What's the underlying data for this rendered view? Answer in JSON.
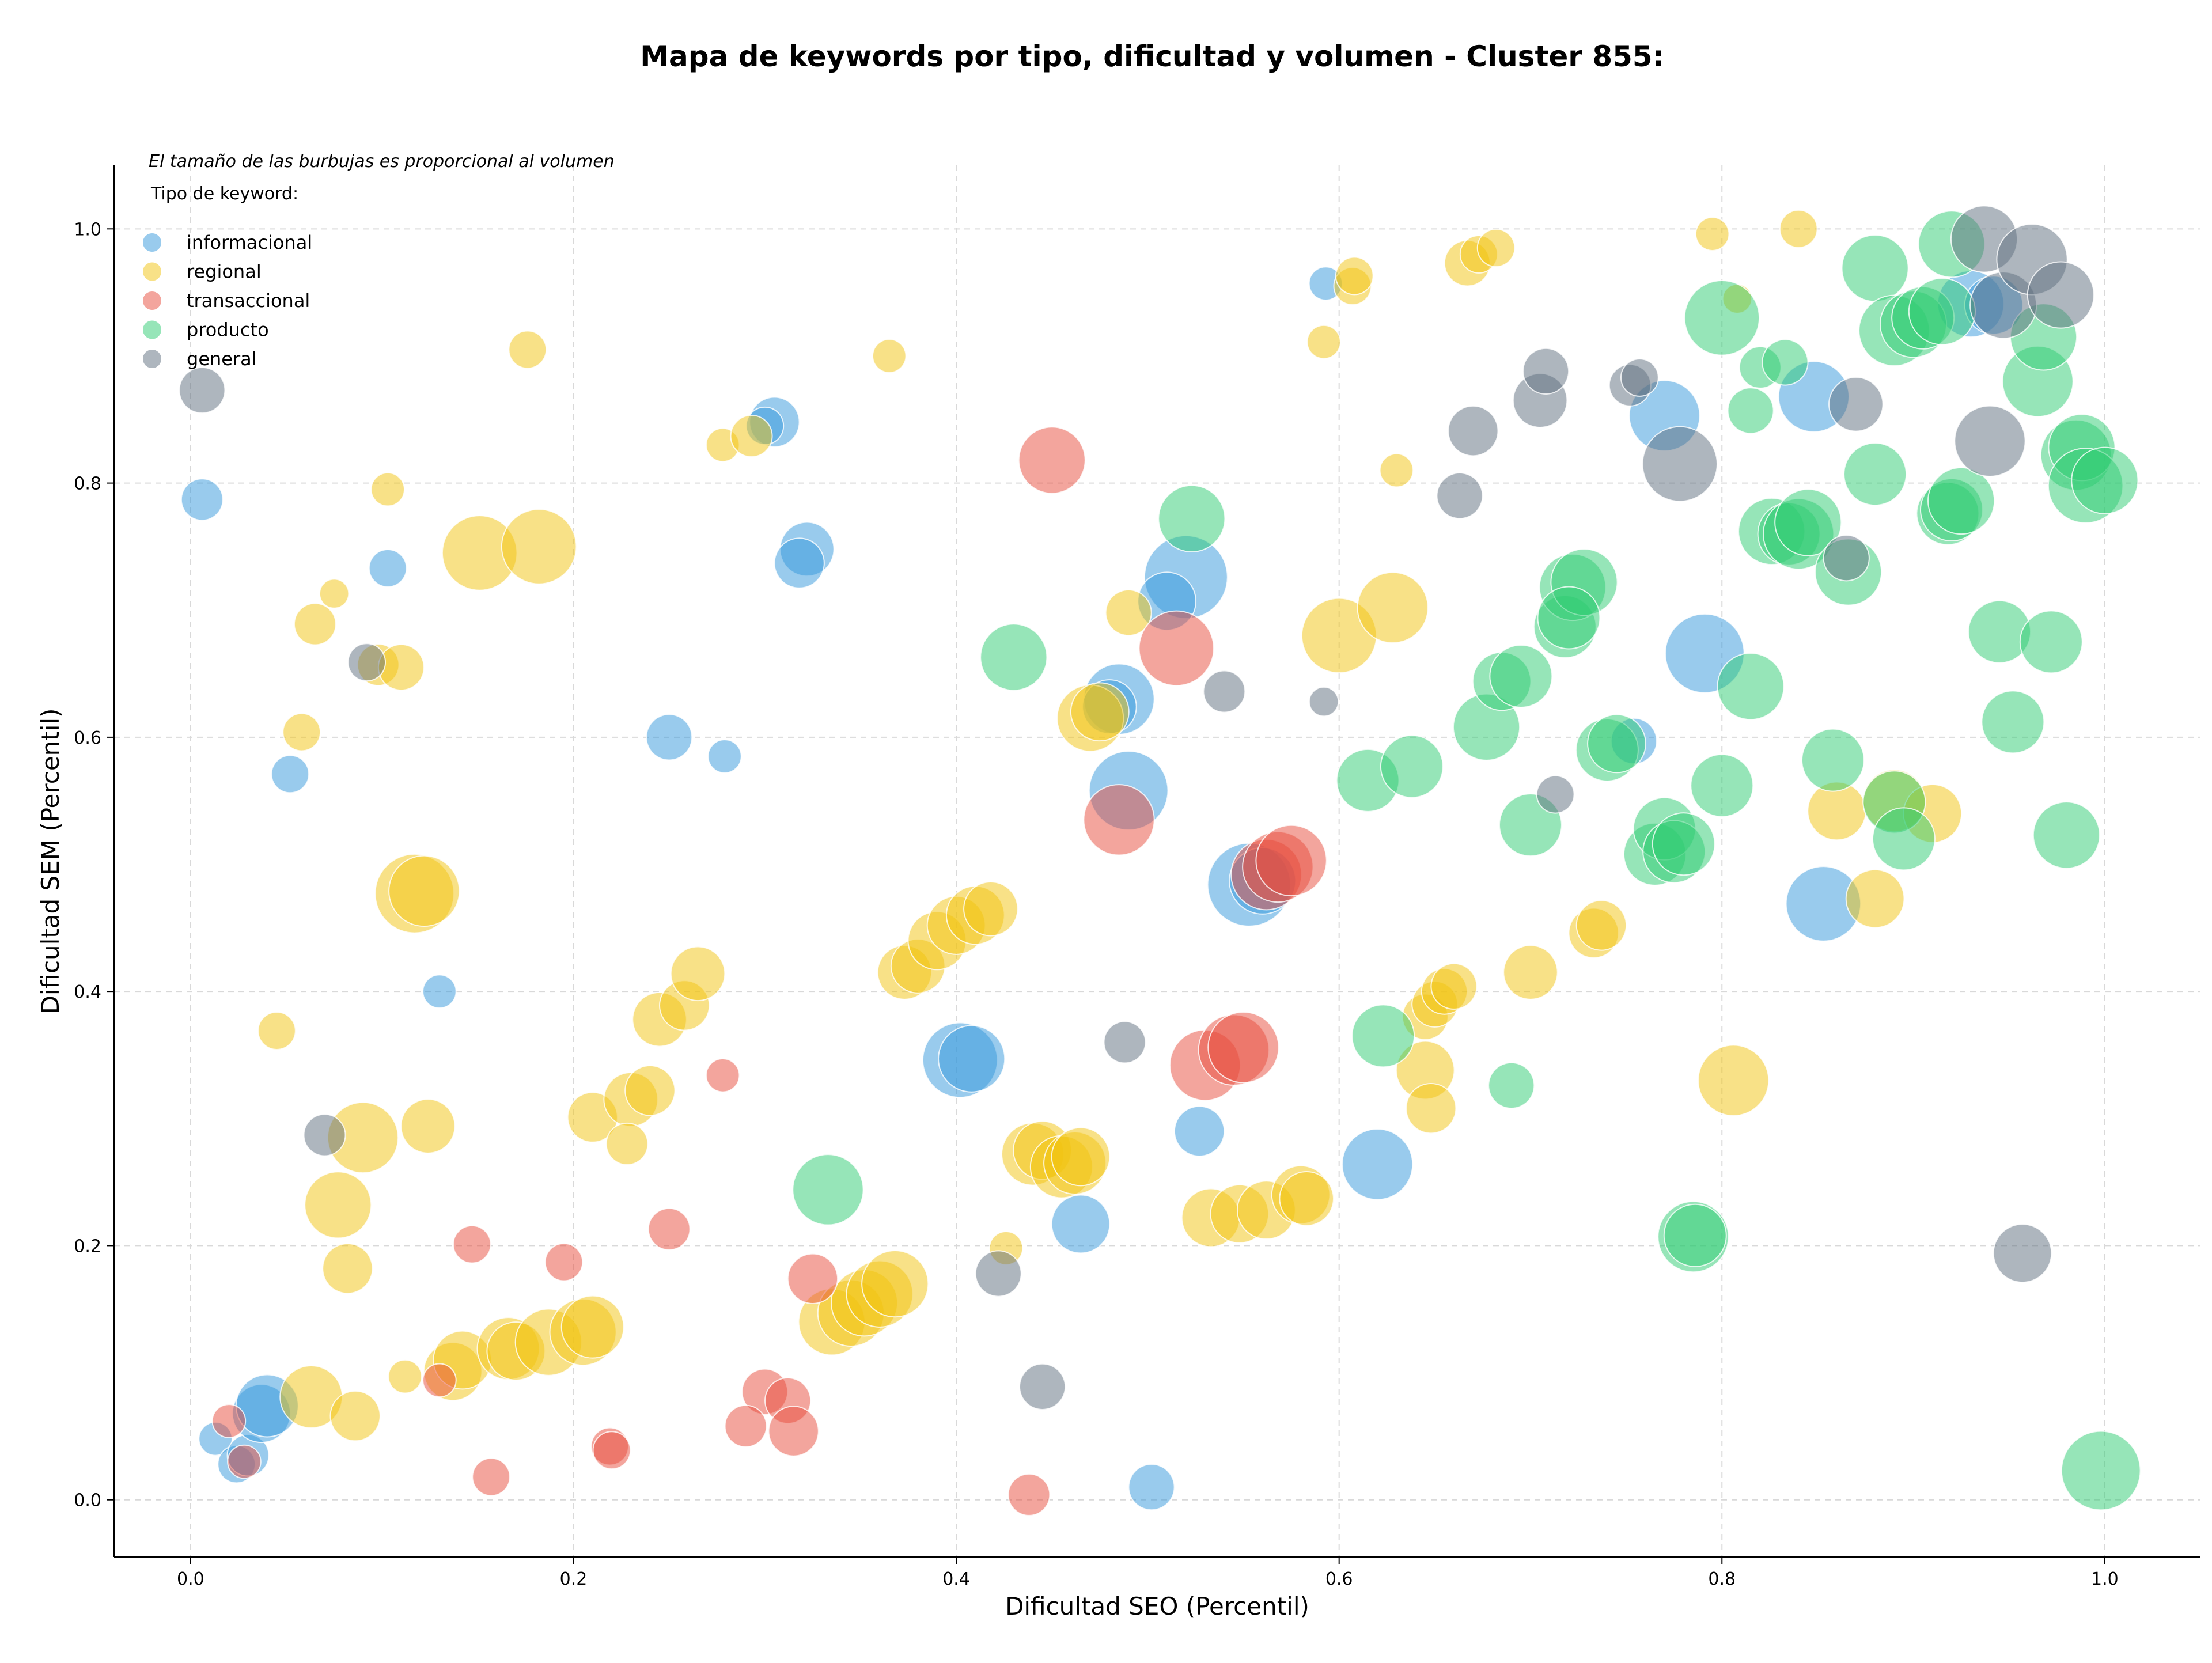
{
  "chart_data": {
    "type": "scatter",
    "title": "Mapa de keywords por tipo, dificultad y volumen - Cluster 855:",
    "xlabel": "Dificultad SEO (Percentil)",
    "ylabel": "Dificultad SEM (Percentil)",
    "xlim": [
      -0.04,
      1.05
    ],
    "ylim": [
      -0.045,
      1.05
    ],
    "xticks": [
      0.0,
      0.2,
      0.4,
      0.6,
      0.8,
      1.0
    ],
    "yticks": [
      0.0,
      0.2,
      0.4,
      0.6,
      0.8,
      1.0
    ],
    "xtick_labels": [
      "0.0",
      "0.2",
      "0.4",
      "0.6",
      "0.8",
      "1.0"
    ],
    "ytick_labels": [
      "0.0",
      "0.2",
      "0.4",
      "0.6",
      "0.8",
      "1.0"
    ],
    "grid": true,
    "annotation": "El tamaño de las burbujas es proporcional al volumen",
    "legend_title": "Tipo de keyword:",
    "legend_position": "top-left",
    "series": [
      {
        "name": "informacional",
        "color": "#3498db",
        "points": [
          [
            0.006,
            0.787,
            1.0
          ],
          [
            0.103,
            0.733,
            0.9
          ],
          [
            0.052,
            0.571,
            0.9
          ],
          [
            0.13,
            0.4,
            0.8
          ],
          [
            0.25,
            0.6,
            1.1
          ],
          [
            0.279,
            0.585,
            0.8
          ],
          [
            0.305,
            0.848,
            1.2
          ],
          [
            0.3,
            0.845,
            0.9
          ],
          [
            0.322,
            0.748,
            1.3
          ],
          [
            0.318,
            0.737,
            1.2
          ],
          [
            0.593,
            0.957,
            0.8
          ],
          [
            0.52,
            0.726,
            2.0
          ],
          [
            0.51,
            0.707,
            1.4
          ],
          [
            0.485,
            0.63,
            1.7
          ],
          [
            0.48,
            0.624,
            1.3
          ],
          [
            0.49,
            0.558,
            1.9
          ],
          [
            0.553,
            0.484,
            2.0
          ],
          [
            0.56,
            0.487,
            1.6
          ],
          [
            0.402,
            0.346,
            1.8
          ],
          [
            0.408,
            0.347,
            1.6
          ],
          [
            0.527,
            0.29,
            1.2
          ],
          [
            0.465,
            0.217,
            1.4
          ],
          [
            0.62,
            0.264,
            1.7
          ],
          [
            0.502,
            0.01,
            1.1
          ],
          [
            0.013,
            0.048,
            0.8
          ],
          [
            0.024,
            0.028,
            0.9
          ],
          [
            0.03,
            0.035,
            1.0
          ],
          [
            0.037,
            0.068,
            1.4
          ],
          [
            0.04,
            0.074,
            1.5
          ],
          [
            0.77,
            0.853,
            1.7
          ],
          [
            0.848,
            0.868,
            1.7
          ],
          [
            0.791,
            0.666,
            1.9
          ],
          [
            0.754,
            0.597,
            1.1
          ],
          [
            0.853,
            0.469,
            1.8
          ],
          [
            0.93,
            0.941,
            1.6
          ],
          [
            0.942,
            0.94,
            1.4
          ]
        ]
      },
      {
        "name": "regional",
        "color": "#f1c40f",
        "points": [
          [
            0.103,
            0.795,
            0.8
          ],
          [
            0.075,
            0.713,
            0.7
          ],
          [
            0.065,
            0.689,
            1.0
          ],
          [
            0.058,
            0.604,
            0.9
          ],
          [
            0.098,
            0.657,
            1.0
          ],
          [
            0.11,
            0.655,
            1.1
          ],
          [
            0.151,
            0.745,
            1.8
          ],
          [
            0.182,
            0.75,
            1.8
          ],
          [
            0.176,
            0.905,
            0.9
          ],
          [
            0.365,
            0.9,
            0.8
          ],
          [
            0.278,
            0.83,
            0.8
          ],
          [
            0.293,
            0.837,
            1.0
          ],
          [
            0.117,
            0.477,
            1.9
          ],
          [
            0.122,
            0.479,
            1.7
          ],
          [
            0.045,
            0.369,
            0.9
          ],
          [
            0.09,
            0.285,
            1.7
          ],
          [
            0.124,
            0.294,
            1.3
          ],
          [
            0.077,
            0.232,
            1.6
          ],
          [
            0.082,
            0.182,
            1.2
          ],
          [
            0.063,
            0.081,
            1.5
          ],
          [
            0.086,
            0.066,
            1.2
          ],
          [
            0.112,
            0.097,
            0.8
          ],
          [
            0.137,
            0.101,
            1.4
          ],
          [
            0.142,
            0.11,
            1.4
          ],
          [
            0.166,
            0.119,
            1.5
          ],
          [
            0.17,
            0.117,
            1.4
          ],
          [
            0.187,
            0.124,
            1.6
          ],
          [
            0.205,
            0.132,
            1.6
          ],
          [
            0.21,
            0.136,
            1.5
          ],
          [
            0.21,
            0.301,
            1.2
          ],
          [
            0.23,
            0.315,
            1.3
          ],
          [
            0.24,
            0.322,
            1.2
          ],
          [
            0.228,
            0.28,
            1.0
          ],
          [
            0.245,
            0.378,
            1.3
          ],
          [
            0.258,
            0.389,
            1.2
          ],
          [
            0.265,
            0.414,
            1.3
          ],
          [
            0.373,
            0.415,
            1.3
          ],
          [
            0.38,
            0.42,
            1.3
          ],
          [
            0.39,
            0.44,
            1.4
          ],
          [
            0.4,
            0.452,
            1.4
          ],
          [
            0.41,
            0.46,
            1.4
          ],
          [
            0.418,
            0.465,
            1.3
          ],
          [
            0.49,
            0.698,
            1.1
          ],
          [
            0.47,
            0.615,
            1.6
          ],
          [
            0.475,
            0.62,
            1.4
          ],
          [
            0.6,
            0.68,
            1.8
          ],
          [
            0.628,
            0.702,
            1.7
          ],
          [
            0.63,
            0.81,
            0.8
          ],
          [
            0.592,
            0.911,
            0.8
          ],
          [
            0.607,
            0.955,
            0.9
          ],
          [
            0.608,
            0.963,
            0.9
          ],
          [
            0.667,
            0.973,
            1.1
          ],
          [
            0.673,
            0.98,
            0.9
          ],
          [
            0.682,
            0.985,
            0.9
          ],
          [
            0.795,
            0.996,
            0.8
          ],
          [
            0.84,
            1.0,
            0.9
          ],
          [
            0.808,
            0.945,
            0.7
          ],
          [
            0.335,
            0.14,
            1.6
          ],
          [
            0.345,
            0.147,
            1.6
          ],
          [
            0.352,
            0.155,
            1.6
          ],
          [
            0.36,
            0.162,
            1.6
          ],
          [
            0.368,
            0.17,
            1.6
          ],
          [
            0.44,
            0.272,
            1.5
          ],
          [
            0.445,
            0.275,
            1.4
          ],
          [
            0.455,
            0.262,
            1.5
          ],
          [
            0.462,
            0.265,
            1.5
          ],
          [
            0.465,
            0.27,
            1.4
          ],
          [
            0.426,
            0.198,
            0.8
          ],
          [
            0.533,
            0.222,
            1.4
          ],
          [
            0.548,
            0.225,
            1.4
          ],
          [
            0.562,
            0.228,
            1.4
          ],
          [
            0.58,
            0.24,
            1.4
          ],
          [
            0.583,
            0.237,
            1.3
          ],
          [
            0.645,
            0.338,
            1.4
          ],
          [
            0.645,
            0.38,
            1.1
          ],
          [
            0.65,
            0.39,
            1.1
          ],
          [
            0.655,
            0.4,
            1.1
          ],
          [
            0.66,
            0.404,
            1.1
          ],
          [
            0.648,
            0.308,
            1.2
          ],
          [
            0.7,
            0.415,
            1.3
          ],
          [
            0.733,
            0.446,
            1.2
          ],
          [
            0.737,
            0.452,
            1.2
          ],
          [
            0.806,
            0.33,
            1.7
          ],
          [
            0.86,
            0.542,
            1.4
          ],
          [
            0.88,
            0.473,
            1.4
          ],
          [
            0.89,
            0.55,
            1.5
          ],
          [
            0.91,
            0.54,
            1.4
          ]
        ]
      },
      {
        "name": "transaccional",
        "color": "#e74c3c",
        "points": [
          [
            0.45,
            0.818,
            1.6
          ],
          [
            0.515,
            0.67,
            1.8
          ],
          [
            0.485,
            0.535,
            1.7
          ],
          [
            0.562,
            0.492,
            1.7
          ],
          [
            0.568,
            0.498,
            1.7
          ],
          [
            0.575,
            0.503,
            1.7
          ],
          [
            0.53,
            0.342,
            1.7
          ],
          [
            0.545,
            0.354,
            1.7
          ],
          [
            0.55,
            0.356,
            1.7
          ],
          [
            0.278,
            0.334,
            0.8
          ],
          [
            0.147,
            0.201,
            0.9
          ],
          [
            0.195,
            0.187,
            0.9
          ],
          [
            0.25,
            0.213,
            1.0
          ],
          [
            0.325,
            0.174,
            1.2
          ],
          [
            0.3,
            0.085,
            1.1
          ],
          [
            0.312,
            0.078,
            1.1
          ],
          [
            0.29,
            0.058,
            1.0
          ],
          [
            0.315,
            0.054,
            1.2
          ],
          [
            0.219,
            0.042,
            0.9
          ],
          [
            0.22,
            0.039,
            0.9
          ],
          [
            0.157,
            0.018,
            0.9
          ],
          [
            0.13,
            0.094,
            0.8
          ],
          [
            0.02,
            0.062,
            0.8
          ],
          [
            0.028,
            0.03,
            0.8
          ],
          [
            0.438,
            0.004,
            1.0
          ]
        ]
      },
      {
        "name": "producto",
        "color": "#2ecc71",
        "points": [
          [
            0.523,
            0.772,
            1.6
          ],
          [
            0.43,
            0.663,
            1.6
          ],
          [
            0.615,
            0.566,
            1.5
          ],
          [
            0.638,
            0.577,
            1.5
          ],
          [
            0.677,
            0.608,
            1.6
          ],
          [
            0.685,
            0.644,
            1.4
          ],
          [
            0.695,
            0.648,
            1.5
          ],
          [
            0.7,
            0.531,
            1.5
          ],
          [
            0.718,
            0.687,
            1.5
          ],
          [
            0.722,
            0.718,
            1.6
          ],
          [
            0.728,
            0.722,
            1.6
          ],
          [
            0.72,
            0.694,
            1.5
          ],
          [
            0.74,
            0.59,
            1.5
          ],
          [
            0.745,
            0.595,
            1.4
          ],
          [
            0.765,
            0.508,
            1.5
          ],
          [
            0.77,
            0.528,
            1.5
          ],
          [
            0.775,
            0.51,
            1.5
          ],
          [
            0.78,
            0.516,
            1.5
          ],
          [
            0.785,
            0.207,
            1.7
          ],
          [
            0.786,
            0.208,
            1.5
          ],
          [
            0.8,
            0.93,
            1.8
          ],
          [
            0.8,
            0.562,
            1.5
          ],
          [
            0.815,
            0.64,
            1.6
          ],
          [
            0.815,
            0.857,
            1.1
          ],
          [
            0.82,
            0.891,
            1.0
          ],
          [
            0.833,
            0.895,
            1.1
          ],
          [
            0.826,
            0.762,
            1.6
          ],
          [
            0.835,
            0.76,
            1.5
          ],
          [
            0.84,
            0.76,
            1.7
          ],
          [
            0.845,
            0.769,
            1.6
          ],
          [
            0.858,
            0.582,
            1.5
          ],
          [
            0.866,
            0.73,
            1.6
          ],
          [
            0.88,
            0.807,
            1.5
          ],
          [
            0.88,
            0.969,
            1.6
          ],
          [
            0.89,
            0.549,
            1.5
          ],
          [
            0.895,
            0.52,
            1.5
          ],
          [
            0.89,
            0.92,
            1.7
          ],
          [
            0.9,
            0.925,
            1.6
          ],
          [
            0.905,
            0.93,
            1.5
          ],
          [
            0.915,
            0.935,
            1.6
          ],
          [
            0.918,
            0.776,
            1.5
          ],
          [
            0.92,
            0.779,
            1.5
          ],
          [
            0.925,
            0.786,
            1.6
          ],
          [
            0.92,
            0.988,
            1.6
          ],
          [
            0.945,
            0.683,
            1.5
          ],
          [
            0.952,
            0.612,
            1.5
          ],
          [
            0.965,
            0.88,
            1.7
          ],
          [
            0.968,
            0.915,
            1.6
          ],
          [
            0.972,
            0.675,
            1.5
          ],
          [
            0.98,
            0.523,
            1.6
          ],
          [
            0.985,
            0.822,
            1.7
          ],
          [
            0.988,
            0.828,
            1.6
          ],
          [
            0.99,
            0.798,
            1.8
          ],
          [
            1.0,
            0.802,
            1.6
          ],
          [
            0.333,
            0.244,
            1.7
          ],
          [
            0.69,
            0.326,
            1.1
          ],
          [
            0.623,
            0.365,
            1.5
          ],
          [
            0.998,
            0.023,
            1.9
          ]
        ]
      },
      {
        "name": "general",
        "color": "#5d6d7e",
        "points": [
          [
            0.006,
            0.873,
            1.1
          ],
          [
            0.092,
            0.659,
            0.9
          ],
          [
            0.07,
            0.287,
            1.0
          ],
          [
            0.54,
            0.636,
            1.0
          ],
          [
            0.592,
            0.628,
            0.7
          ],
          [
            0.488,
            0.36,
            1.0
          ],
          [
            0.422,
            0.178,
            1.1
          ],
          [
            0.445,
            0.089,
            1.1
          ],
          [
            0.663,
            0.79,
            1.1
          ],
          [
            0.67,
            0.841,
            1.2
          ],
          [
            0.705,
            0.865,
            1.3
          ],
          [
            0.708,
            0.888,
            1.1
          ],
          [
            0.713,
            0.555,
            0.9
          ],
          [
            0.752,
            0.877,
            1.0
          ],
          [
            0.757,
            0.883,
            0.9
          ],
          [
            0.778,
            0.815,
            1.8
          ],
          [
            0.87,
            0.862,
            1.3
          ],
          [
            0.865,
            0.741,
            1.1
          ],
          [
            0.937,
            0.992,
            1.6
          ],
          [
            0.94,
            0.833,
            1.7
          ],
          [
            0.947,
            0.94,
            1.6
          ],
          [
            0.962,
            0.976,
            1.7
          ],
          [
            0.977,
            0.948,
            1.6
          ],
          [
            0.957,
            0.194,
            1.4
          ]
        ]
      }
    ]
  }
}
